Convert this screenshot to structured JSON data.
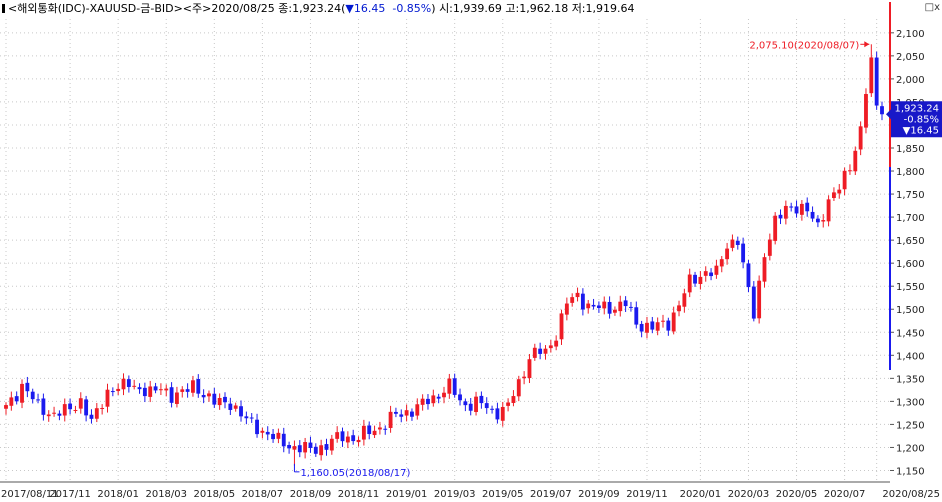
{
  "header": {
    "symbol": "<해외통화(IDC)-XAUUSD-금-BID>",
    "period": "<주>",
    "date": "2020/08/25",
    "close_label": "종:",
    "close": "1,923.24",
    "change_arrow": "▼",
    "change": "16.45",
    "change_pct": "-0.85%",
    "open_label": "시:",
    "open": "1,939.69",
    "high_label": "고:",
    "high": "1,962.18",
    "low_label": "저:",
    "low": "1,919.64"
  },
  "window_icons": "□ⅹ",
  "price_box": {
    "price": "1,923.24",
    "pct": "-0.85%",
    "change": "▼16.45"
  },
  "annotations": {
    "high": "2,075.10(2020/08/07)",
    "low": "1,160.05(2018/08/17)"
  },
  "colors": {
    "up": "#ee1c25",
    "down": "#1a1aee",
    "grid": "#c8c8c8",
    "annotation_high": "#ee1c25",
    "annotation_low": "#1a1aee"
  },
  "chart_data": {
    "type": "candlestick",
    "title": "",
    "ylim": [
      1125,
      2130
    ],
    "y_ticks": [
      1150,
      1200,
      1250,
      1300,
      1350,
      1400,
      1450,
      1500,
      1550,
      1600,
      1650,
      1700,
      1750,
      1800,
      1850,
      1900,
      1950,
      2000,
      2050,
      2100
    ],
    "y_tick_labels": [
      "1,150",
      "1,200",
      "1,250",
      "1,300",
      "1,350",
      "1,400",
      "1,450",
      "1,500",
      "1,550",
      "1,600",
      "1,650",
      "1,700",
      "1,750",
      "1,800",
      "1,850",
      "1,900",
      "1,950",
      "2,000",
      "2,050",
      "2,100"
    ],
    "x_labels": [
      "2017/08/11",
      "2017/11",
      "2018/01",
      "2018/03",
      "2018/05",
      "2018/07",
      "2018/09",
      "2018/11",
      "2019/01",
      "2019/03",
      "2019/05",
      "2019/07",
      "2019/09",
      "2019/11",
      "2020/01",
      "2020/03",
      "2020/05",
      "2020/07",
      "2020/08/25"
    ],
    "x_label_candle_index": [
      0,
      12,
      21,
      30,
      39,
      48,
      57,
      66,
      75,
      84,
      93,
      102,
      111,
      120,
      130,
      139,
      148,
      157,
      163
    ],
    "anchors": [
      [
        0,
        1285
      ],
      [
        3,
        1335
      ],
      [
        6,
        1290
      ],
      [
        9,
        1270
      ],
      [
        12,
        1285
      ],
      [
        14,
        1300
      ],
      [
        16,
        1255
      ],
      [
        19,
        1320
      ],
      [
        21,
        1330
      ],
      [
        23,
        1340
      ],
      [
        25,
        1325
      ],
      [
        27,
        1320
      ],
      [
        29,
        1330
      ],
      [
        31,
        1310
      ],
      [
        33,
        1320
      ],
      [
        35,
        1335
      ],
      [
        37,
        1315
      ],
      [
        39,
        1300
      ],
      [
        42,
        1295
      ],
      [
        45,
        1260
      ],
      [
        48,
        1235
      ],
      [
        51,
        1215
      ],
      [
        54,
        1200
      ],
      [
        57,
        1195
      ],
      [
        60,
        1205
      ],
      [
        63,
        1225
      ],
      [
        66,
        1220
      ],
      [
        69,
        1240
      ],
      [
        72,
        1260
      ],
      [
        75,
        1280
      ],
      [
        78,
        1290
      ],
      [
        81,
        1320
      ],
      [
        83,
        1330
      ],
      [
        85,
        1300
      ],
      [
        88,
        1295
      ],
      [
        91,
        1280
      ],
      [
        94,
        1285
      ],
      [
        96,
        1340
      ],
      [
        98,
        1400
      ],
      [
        101,
        1405
      ],
      [
        103,
        1450
      ],
      [
        105,
        1510
      ],
      [
        107,
        1530
      ],
      [
        110,
        1500
      ],
      [
        113,
        1505
      ],
      [
        116,
        1510
      ],
      [
        118,
        1470
      ],
      [
        121,
        1460
      ],
      [
        124,
        1470
      ],
      [
        126,
        1510
      ],
      [
        128,
        1560
      ],
      [
        131,
        1580
      ],
      [
        133,
        1580
      ],
      [
        135,
        1640
      ],
      [
        137,
        1650
      ],
      [
        139,
        1540
      ],
      [
        140,
        1490
      ],
      [
        142,
        1620
      ],
      [
        144,
        1690
      ],
      [
        146,
        1720
      ],
      [
        148,
        1720
      ],
      [
        150,
        1715
      ],
      [
        152,
        1680
      ],
      [
        154,
        1735
      ],
      [
        156,
        1765
      ],
      [
        158,
        1810
      ],
      [
        160,
        1890
      ],
      [
        161,
        1975
      ],
      [
        162,
        2035
      ],
      [
        163,
        1940
      ],
      [
        164,
        1925
      ]
    ],
    "candle_count": 165,
    "last_close": 1923.24,
    "high_point": {
      "index": 162,
      "value": 2075.1,
      "date": "2020/08/07"
    },
    "low_point": {
      "index": 54,
      "value": 1160.05,
      "date": "2018/08/17"
    },
    "grid": true,
    "legend": "none"
  }
}
